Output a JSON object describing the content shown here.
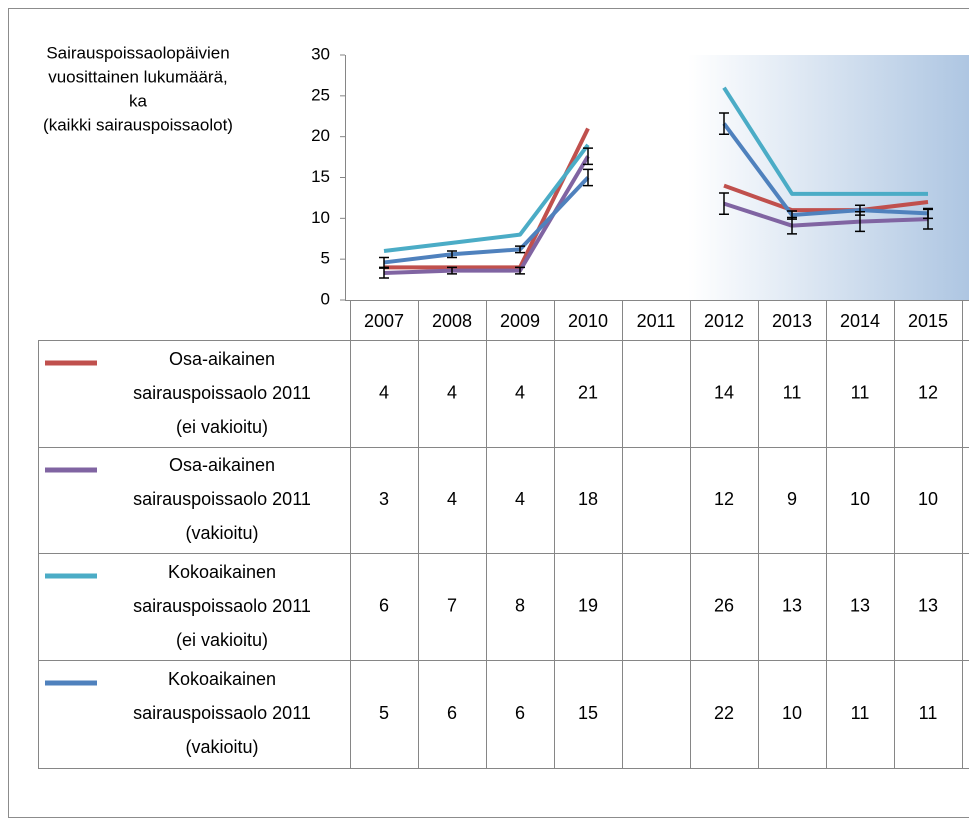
{
  "chart_data": {
    "type": "line",
    "y_label_lines": [
      "Sairauspoissaolopäivien",
      "vuosittainen lukumäärä,",
      "ka",
      "(kaikki sairauspoissaolot)"
    ],
    "categories": [
      "2007",
      "2008",
      "2009",
      "2010",
      "2011",
      "2012",
      "2013",
      "2014",
      "2015"
    ],
    "ylim": [
      0,
      30
    ],
    "yticks": [
      0,
      5,
      10,
      15,
      20,
      25,
      30
    ],
    "series": [
      {
        "name": "Osa-aikainen sairauspoissaolo 2011 (ei vakioitu)",
        "color": "#c0504d",
        "values": [
          4,
          4,
          4,
          21,
          null,
          14,
          11,
          11,
          12
        ],
        "value_labels": [
          "4",
          "4",
          "4",
          "21",
          null,
          "14",
          "11",
          "11",
          "12"
        ]
      },
      {
        "name": "Osa-aikainen sairauspoissaolo 2011 (vakioitu)",
        "color": "#8064a2",
        "values": [
          3.3,
          3.6,
          3.6,
          17.6,
          null,
          11.8,
          9.1,
          9.6,
          9.9
        ],
        "errors": [
          0.6,
          0.4,
          0.4,
          1,
          null,
          1.3,
          1,
          1.2,
          1.2
        ],
        "value_labels": [
          "3",
          "4",
          "4",
          "18",
          null,
          "12",
          "9",
          "10",
          "10"
        ]
      },
      {
        "name": "Kokoaikainen sairauspoissaolo 2011 (ei vakioitu)",
        "color": "#4bacc6",
        "values": [
          6,
          7,
          8,
          19,
          null,
          26,
          13,
          13,
          13
        ],
        "value_labels": [
          "6",
          "7",
          "8",
          "19",
          null,
          "26",
          "13",
          "13",
          "13"
        ]
      },
      {
        "name": "Kokoaikainen sairauspoissaolo 2011 (vakioitu)",
        "color": "#4f81bd",
        "values": [
          4.6,
          5.6,
          6.2,
          15,
          null,
          21.6,
          10.4,
          11,
          10.6
        ],
        "errors": [
          0.6,
          0.4,
          0.4,
          1,
          null,
          1.3,
          0.5,
          0.6,
          0.6
        ],
        "value_labels": [
          "5",
          "6",
          "6",
          "15",
          null,
          "22",
          "10",
          "11",
          "11"
        ]
      }
    ]
  }
}
